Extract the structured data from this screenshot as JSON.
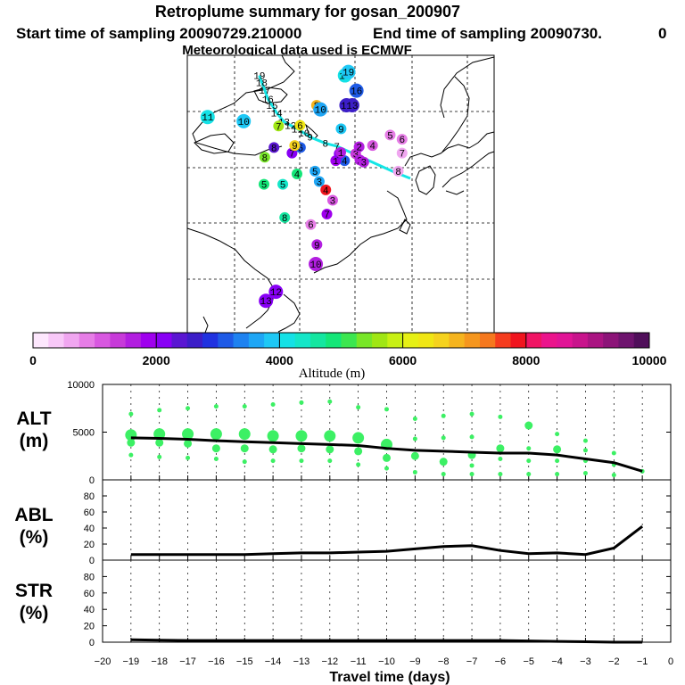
{
  "header": {
    "title": "Retroplume summary for gosan_200907",
    "start_time": "Start time of sampling 20090729.210000",
    "end_time": "End time of sampling 20090730.",
    "end_suffix": "0",
    "met_data": "Meteorological data used is ECMWF"
  },
  "colorbar": {
    "label": "Altitude  (m)",
    "min": 0,
    "max": 10000,
    "tick_labels": [
      "0",
      "2000",
      "4000",
      "6000",
      "8000",
      "10000"
    ],
    "colors": [
      "#fde7fd",
      "#f8c8f8",
      "#f0a6f0",
      "#e67de6",
      "#d858e0",
      "#c73ad9",
      "#b21ee0",
      "#9f00ee",
      "#8800f5",
      "#5a16d2",
      "#3c1ec8",
      "#2032e0",
      "#1e5ae6",
      "#1e82f0",
      "#1ea6f5",
      "#1ec8f5",
      "#14e1e6",
      "#14e6c8",
      "#14e6a0",
      "#14e678",
      "#3ce650",
      "#78e628",
      "#a0e614",
      "#c8f014",
      "#e6f014",
      "#f0e614",
      "#f5d21e",
      "#f5b41e",
      "#f5961e",
      "#f5781e",
      "#f53c1e",
      "#f0141e",
      "#f01464",
      "#eb148c",
      "#e11496",
      "#c8148c",
      "#aa1482",
      "#8c1478",
      "#6e146e",
      "#500f5a"
    ]
  },
  "map": {
    "points": [
      {
        "label": "19",
        "lon": 78.8,
        "lat": 47.1,
        "alt": 3800
      },
      {
        "label": "18",
        "lon": 79.4,
        "lat": 46.1,
        "alt": 3900
      },
      {
        "label": "17",
        "lon": 80.2,
        "lat": 45.0,
        "alt": 3900
      },
      {
        "label": "16",
        "lon": 81.0,
        "lat": 43.7,
        "alt": 3800
      },
      {
        "label": "15",
        "lon": 82.1,
        "lat": 42.8,
        "alt": 3700
      },
      {
        "label": "14",
        "lon": 83.3,
        "lat": 41.7,
        "alt": 3700
      },
      {
        "label": "13",
        "lon": 85.2,
        "lat": 40.4,
        "alt": 3600
      },
      {
        "label": "12",
        "lon": 86.9,
        "lat": 39.9,
        "alt": 3500
      },
      {
        "label": "11",
        "lon": 88.7,
        "lat": 39.4,
        "alt": 3500
      },
      {
        "label": "10",
        "lon": 90.4,
        "lat": 38.8,
        "alt": 3300
      },
      {
        "label": "9",
        "lon": 92.0,
        "lat": 38.2,
        "alt": 3100
      },
      {
        "label": "8",
        "lon": 96.0,
        "lat": 37.3,
        "alt": 3000
      },
      {
        "label": "7",
        "lon": 99.0,
        "lat": 36.9,
        "alt": 2900
      },
      {
        "label": "11",
        "lon": 65.3,
        "lat": 41.1,
        "alt": 4200
      },
      {
        "label": "10",
        "lon": 74.7,
        "lat": 40.5,
        "alt": 3800
      },
      {
        "label": "7",
        "lon": 83.8,
        "lat": 39.8,
        "alt": 5500
      },
      {
        "label": "6",
        "lon": 89.4,
        "lat": 39.9,
        "alt": 6300
      },
      {
        "label": "8",
        "lon": 82.6,
        "lat": 36.7,
        "alt": 2400
      },
      {
        "label": "7",
        "lon": 87.3,
        "lat": 35.9,
        "alt": 2200
      },
      {
        "label": "6",
        "lon": 89.5,
        "lat": 36.7,
        "alt": 3200
      },
      {
        "label": "9",
        "lon": 88.0,
        "lat": 37.0,
        "alt": 6500
      },
      {
        "label": "5",
        "lon": 93.3,
        "lat": 33.3,
        "alt": 3600
      },
      {
        "label": "4",
        "lon": 88.6,
        "lat": 32.9,
        "alt": 4800
      },
      {
        "label": "3",
        "lon": 94.4,
        "lat": 31.8,
        "alt": 3700
      },
      {
        "label": "5",
        "lon": 84.9,
        "lat": 31.4,
        "alt": 4300
      },
      {
        "label": "4",
        "lon": 96.1,
        "lat": 30.6,
        "alt": 7800
      },
      {
        "label": "3",
        "lon": 97.9,
        "lat": 29.1,
        "alt": 1200
      },
      {
        "label": "8",
        "lon": 93.7,
        "lat": 42.8,
        "alt": 6800
      },
      {
        "label": "10",
        "lon": 94.7,
        "lat": 42.2,
        "alt": 3600
      },
      {
        "label": "9",
        "lon": 100.1,
        "lat": 39.4,
        "alt": 3900
      },
      {
        "label": "14",
        "lon": 101.5,
        "lat": 42.8,
        "alt": 2600
      },
      {
        "label": "13",
        "lon": 103.0,
        "lat": 42.8,
        "alt": 2700
      },
      {
        "label": "16",
        "lon": 104.1,
        "lat": 44.9,
        "alt": 3200
      },
      {
        "label": "17",
        "lon": 101.1,
        "lat": 47.1,
        "alt": 4000
      },
      {
        "label": "19",
        "lon": 102.0,
        "lat": 47.6,
        "alt": 3800
      },
      {
        "label": "5",
        "lon": 112.9,
        "lat": 38.5,
        "alt": 900
      },
      {
        "label": "6",
        "lon": 116.0,
        "lat": 37.9,
        "alt": 800
      },
      {
        "label": "4",
        "lon": 108.3,
        "lat": 37.0,
        "alt": 1000
      },
      {
        "label": "3",
        "lon": 103.9,
        "lat": 35.8,
        "alt": 1300
      },
      {
        "label": "7",
        "lon": 116.0,
        "lat": 35.9,
        "alt": 700
      },
      {
        "label": "8",
        "lon": 115.0,
        "lat": 33.3,
        "alt": 700
      },
      {
        "label": "2",
        "lon": 104.8,
        "lat": 36.8,
        "alt": 1500
      },
      {
        "label": "4",
        "lon": 101.0,
        "lat": 34.8,
        "alt": 3000
      },
      {
        "label": "1",
        "lon": 98.7,
        "lat": 34.8,
        "alt": 1800
      },
      {
        "label": "2",
        "lon": 105.0,
        "lat": 34.9,
        "alt": 1600
      },
      {
        "label": "3",
        "lon": 106.0,
        "lat": 34.6,
        "alt": 1700
      },
      {
        "label": "1",
        "lon": 99.6,
        "lat": 35.8,
        "alt": 2000
      },
      {
        "label": "7",
        "lon": 96.4,
        "lat": 27.1,
        "alt": 1900
      },
      {
        "label": "6",
        "lon": 92.2,
        "lat": 25.6,
        "alt": 800
      },
      {
        "label": "8",
        "lon": 85.4,
        "lat": 26.6,
        "alt": 4500
      },
      {
        "label": "9",
        "lon": 93.8,
        "lat": 22.7,
        "alt": 1700
      },
      {
        "label": "10",
        "lon": 93.5,
        "lat": 19.9,
        "alt": 1700
      },
      {
        "label": "12",
        "lon": 83.1,
        "lat": 15.9,
        "alt": 2000
      },
      {
        "label": "13",
        "lon": 80.5,
        "lat": 14.6,
        "alt": 2100
      },
      {
        "label": "8",
        "lon": 80.2,
        "lat": 35.3,
        "alt": 5300
      },
      {
        "label": "5",
        "lon": 80.0,
        "lat": 31.4,
        "alt": 4900
      },
      {
        "label": "1",
        "lon": 100.0,
        "lat": 36.0,
        "alt": 1500
      }
    ]
  },
  "chart_data": [
    {
      "type": "scatter",
      "panel_label": [
        "ALT",
        "(m)"
      ],
      "xlim": [
        -20,
        0
      ],
      "ylim": [
        0,
        10000
      ],
      "y_ticks": [
        0,
        5000,
        10000
      ],
      "y_tick_labels": [
        "0",
        "5000",
        "10000"
      ],
      "x_ticks": [
        -20,
        -19,
        -18,
        -17,
        -16,
        -15,
        -14,
        -13,
        -12,
        -11,
        -10,
        -9,
        -8,
        -7,
        -6,
        -5,
        -4,
        -3,
        -2,
        -1,
        0
      ],
      "x_tick_labels": [
        "−20",
        "−19",
        "−18",
        "−17",
        "−16",
        "−15",
        "−14",
        "−13",
        "−12",
        "−11",
        "−10",
        "−9",
        "−8",
        "−7",
        "−6",
        "−5",
        "−4",
        "−3",
        "−2",
        "−1",
        "0"
      ],
      "mean_line": {
        "x": [
          -19,
          -18,
          -17,
          -16,
          -15,
          -14,
          -13,
          -12,
          -11,
          -10,
          -9,
          -8,
          -7,
          -6,
          -5,
          -4,
          -3,
          -2,
          -1
        ],
        "y": [
          4400,
          4350,
          4250,
          4100,
          4000,
          3900,
          3800,
          3700,
          3600,
          3300,
          3100,
          3000,
          2900,
          2800,
          2800,
          2600,
          2200,
          1800,
          900
        ]
      },
      "clusters": [
        {
          "x": -19,
          "y": [
            6900,
            4700,
            3900,
            2600
          ],
          "size": [
            1,
            3,
            2,
            1
          ]
        },
        {
          "x": -18,
          "y": [
            7300,
            4800,
            3900,
            2400
          ],
          "size": [
            1,
            3,
            2,
            1
          ]
        },
        {
          "x": -17,
          "y": [
            7500,
            4800,
            3800,
            2300
          ],
          "size": [
            1,
            3,
            2,
            1
          ]
        },
        {
          "x": -16,
          "y": [
            7700,
            4800,
            3300,
            2200
          ],
          "size": [
            1,
            3,
            2,
            1
          ]
        },
        {
          "x": -15,
          "y": [
            7700,
            4800,
            3300,
            1900
          ],
          "size": [
            1,
            3,
            2,
            1
          ]
        },
        {
          "x": -14,
          "y": [
            7900,
            4600,
            3200,
            2000
          ],
          "size": [
            1,
            3,
            2,
            1
          ]
        },
        {
          "x": -13,
          "y": [
            8100,
            4600,
            3300,
            2000
          ],
          "size": [
            1,
            3,
            2,
            1
          ]
        },
        {
          "x": -12,
          "y": [
            8200,
            4600,
            3200,
            2000
          ],
          "size": [
            1,
            3,
            2,
            1
          ]
        },
        {
          "x": -11,
          "y": [
            7600,
            4400,
            3000,
            1600
          ],
          "size": [
            1,
            3,
            2,
            1
          ]
        },
        {
          "x": -10,
          "y": [
            7400,
            3700,
            2300,
            1200
          ],
          "size": [
            1,
            3,
            2,
            1
          ]
        },
        {
          "x": -9,
          "y": [
            6400,
            4300,
            2500,
            800
          ],
          "size": [
            1,
            1,
            2,
            1
          ]
        },
        {
          "x": -8,
          "y": [
            6700,
            4400,
            1900,
            600
          ],
          "size": [
            1,
            1,
            2,
            1
          ]
        },
        {
          "x": -7,
          "y": [
            6900,
            4500,
            2600,
            1500,
            600
          ],
          "size": [
            1,
            1,
            2,
            1,
            1
          ]
        },
        {
          "x": -6,
          "y": [
            6600,
            3300,
            2200,
            600
          ],
          "size": [
            1,
            2,
            1,
            1
          ]
        },
        {
          "x": -5,
          "y": [
            5700,
            3300,
            2000,
            600
          ],
          "size": [
            2,
            1,
            1,
            1
          ]
        },
        {
          "x": -4,
          "y": [
            4800,
            3200,
            2000,
            600
          ],
          "size": [
            1,
            2,
            1,
            1
          ]
        },
        {
          "x": -3,
          "y": [
            4100,
            3100,
            2000,
            700
          ],
          "size": [
            1,
            1,
            1,
            1
          ]
        },
        {
          "x": -2,
          "y": [
            2800,
            1600,
            500
          ],
          "size": [
            1,
            1,
            1
          ]
        },
        {
          "x": -1,
          "y": [
            900
          ],
          "size": [
            1
          ]
        }
      ]
    },
    {
      "type": "line",
      "panel_label": [
        "ABL",
        "(%)"
      ],
      "xlim": [
        -20,
        0
      ],
      "ylim": [
        0,
        100
      ],
      "y_ticks": [
        0,
        20,
        40,
        60,
        80
      ],
      "y_tick_labels": [
        "0",
        "20",
        "40",
        "60",
        "80"
      ],
      "x": [
        -19,
        -18,
        -17,
        -16,
        -15,
        -14,
        -13,
        -12,
        -11,
        -10,
        -9,
        -8,
        -7,
        -6,
        -5,
        -4,
        -3,
        -2,
        -1
      ],
      "values": [
        7,
        7,
        7,
        7,
        7,
        8,
        9,
        9,
        10,
        11,
        14,
        17,
        18,
        12,
        8,
        9,
        7,
        15,
        42
      ]
    },
    {
      "type": "line",
      "panel_label": [
        "STR",
        "(%)"
      ],
      "xlim": [
        -20,
        0
      ],
      "ylim": [
        0,
        100
      ],
      "y_ticks": [
        0,
        20,
        40,
        60,
        80
      ],
      "y_tick_labels": [
        "0",
        "20",
        "40",
        "60",
        "80"
      ],
      "x_ticks": [
        -20,
        -19,
        -18,
        -17,
        -16,
        -15,
        -14,
        -13,
        -12,
        -11,
        -10,
        -9,
        -8,
        -7,
        -6,
        -5,
        -4,
        -3,
        -2,
        -1,
        0
      ],
      "x_tick_labels": [
        "−20",
        "−19",
        "−18",
        "−17",
        "−16",
        "−15",
        "−14",
        "−13",
        "−12",
        "−11",
        "−10",
        "−9",
        "−8",
        "−7",
        "−6",
        "−5",
        "−4",
        "−3",
        "−2",
        "−1",
        "0"
      ],
      "xlabel": "Travel time (days)",
      "x": [
        -19,
        -18,
        -17,
        -16,
        -15,
        -14,
        -13,
        -12,
        -11,
        -10,
        -9,
        -8,
        -7,
        -6,
        -5,
        -4,
        -3,
        -2,
        -1
      ],
      "values": [
        3,
        2.5,
        2,
        2,
        2,
        2,
        2,
        2,
        2,
        2,
        2,
        2,
        2,
        2,
        1.5,
        1,
        0.5,
        0,
        0
      ]
    }
  ]
}
